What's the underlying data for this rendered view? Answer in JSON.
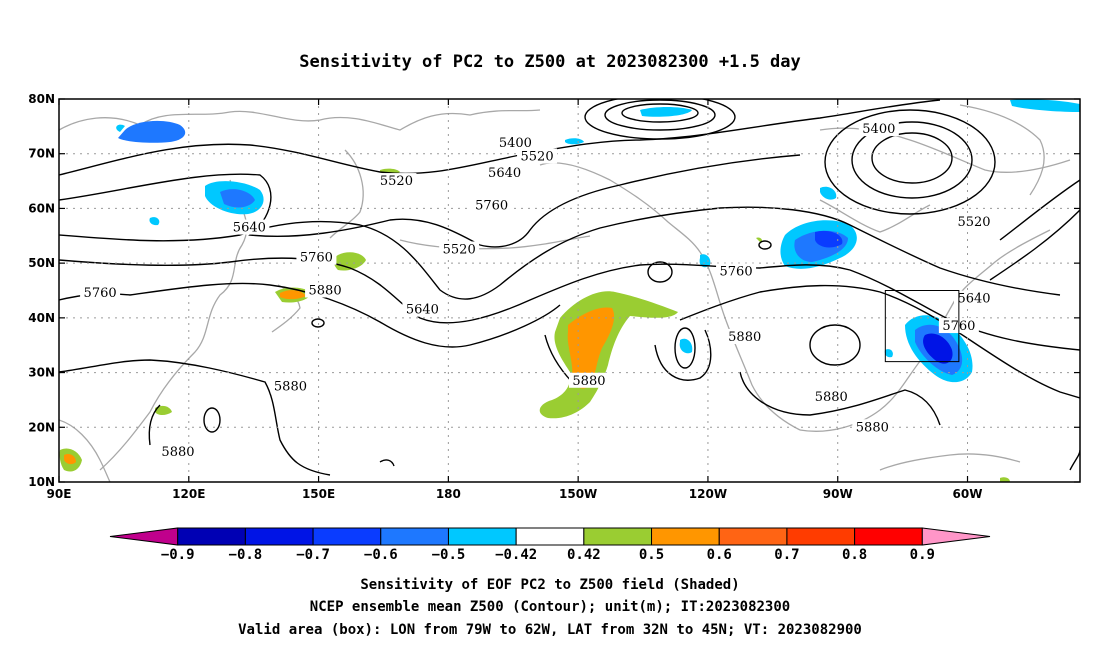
{
  "title": "Sensitivity of PC2 to Z500 at 2023082300 +1.5 day",
  "map": {
    "lon_ticks": [
      {
        "lon": 90,
        "label": "90E"
      },
      {
        "lon": 120,
        "label": "120E"
      },
      {
        "lon": 150,
        "label": "150E"
      },
      {
        "lon": 180,
        "label": "180"
      },
      {
        "lon": 210,
        "label": "150W"
      },
      {
        "lon": 240,
        "label": "120W"
      },
      {
        "lon": 270,
        "label": "90W"
      },
      {
        "lon": 300,
        "label": "60W"
      }
    ],
    "lat_ticks": [
      {
        "lat": 80,
        "label": "80N"
      },
      {
        "lat": 70,
        "label": "70N"
      },
      {
        "lat": 60,
        "label": "60N"
      },
      {
        "lat": 50,
        "label": "50N"
      },
      {
        "lat": 40,
        "label": "40N"
      },
      {
        "lat": 30,
        "label": "30N"
      },
      {
        "lat": 20,
        "label": "20N"
      },
      {
        "lat": 10,
        "label": "10N"
      }
    ],
    "contour_labels": [
      {
        "text": "5400",
        "lon": 195.5,
        "lat": 72.0
      },
      {
        "text": "5400",
        "lon": 279.5,
        "lat": 74.5
      },
      {
        "text": "5520",
        "lon": 200.5,
        "lat": 69.5
      },
      {
        "text": "5520",
        "lon": 168.0,
        "lat": 65.0
      },
      {
        "text": "5520",
        "lon": 182.5,
        "lat": 52.5
      },
      {
        "text": "5520",
        "lon": 301.5,
        "lat": 57.5
      },
      {
        "text": "5640",
        "lon": 193.0,
        "lat": 66.5
      },
      {
        "text": "5640",
        "lon": 134.0,
        "lat": 56.5
      },
      {
        "text": "5640",
        "lon": 174.0,
        "lat": 41.5
      },
      {
        "text": "5640",
        "lon": 301.5,
        "lat": 43.5
      },
      {
        "text": "5760",
        "lon": 190.0,
        "lat": 60.5
      },
      {
        "text": "5760",
        "lon": 149.5,
        "lat": 51.0
      },
      {
        "text": "5760",
        "lon": 246.5,
        "lat": 48.5
      },
      {
        "text": "5760",
        "lon": 298.0,
        "lat": 38.5
      },
      {
        "text": "5760",
        "lon": 99.5,
        "lat": 44.5
      },
      {
        "text": "5880",
        "lon": 151.5,
        "lat": 45.0
      },
      {
        "text": "5880",
        "lon": 212.5,
        "lat": 28.5
      },
      {
        "text": "5880",
        "lon": 248.5,
        "lat": 36.5
      },
      {
        "text": "5880",
        "lon": 143.5,
        "lat": 27.5
      },
      {
        "text": "5880",
        "lon": 117.5,
        "lat": 15.5
      },
      {
        "text": "5880",
        "lon": 268.5,
        "lat": 25.5
      },
      {
        "text": "5880",
        "lon": 278.0,
        "lat": 20.0
      }
    ],
    "valid_box": {
      "lon_min": 281,
      "lon_max": 298,
      "lat_min": 32,
      "lat_max": 45
    }
  },
  "colorbar": {
    "colors": [
      "#c0008c",
      "#0000b4",
      "#0014e6",
      "#0a3cff",
      "#1e78ff",
      "#00c8ff",
      "#ffffff",
      "#9acd32",
      "#ff9600",
      "#ff6414",
      "#ff3c00",
      "#ff0000",
      "#ff96c8"
    ],
    "labels": [
      "−0.9",
      "−0.8",
      "−0.7",
      "−0.6",
      "−0.5",
      "−0.42",
      "0.42",
      "0.5",
      "0.6",
      "0.7",
      "0.8",
      "0.9"
    ]
  },
  "caption": {
    "line1": "Sensitivity of EOF PC2 to Z500 field (Shaded)",
    "line2": "NCEP ensemble mean Z500 (Contour); unit(m); IT:2023082300",
    "line3": "Valid area (box): LON from 79W to 62W, LAT from 32N to 45N; VT: 2023082900"
  }
}
